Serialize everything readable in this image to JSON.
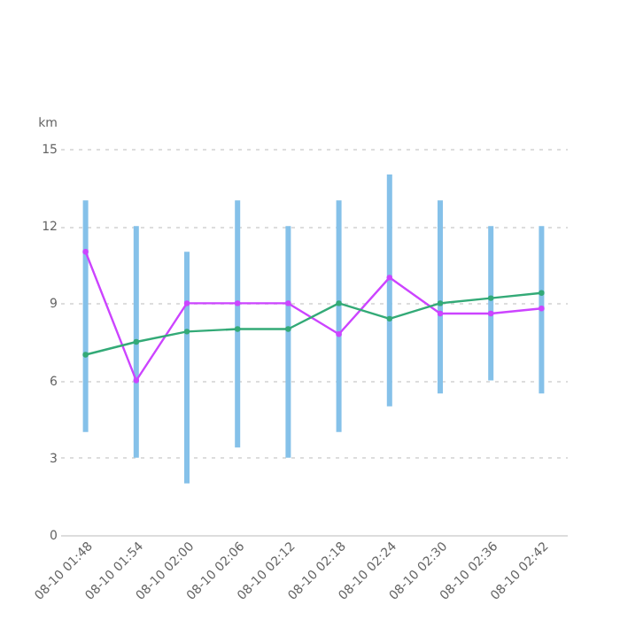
{
  "chart_data": {
    "type": "bar",
    "ylabel": "km",
    "categories": [
      "08-10 01:48",
      "08-10 01:54",
      "08-10 02:00",
      "08-10 02:06",
      "08-10 02:12",
      "08-10 02:18",
      "08-10 02:24",
      "08-10 02:30",
      "08-10 02:36",
      "08-10 02:42"
    ],
    "series": [
      {
        "color": "#85c1e9",
        "base": [
          4,
          3,
          2,
          3.4,
          3,
          4,
          5,
          5.5,
          6,
          5.5
        ],
        "values": [
          9,
          9,
          9,
          9.6,
          9,
          9,
          9,
          7.5,
          6,
          6.5
        ]
      },
      {
        "type": "line",
        "color": "#cc44ff",
        "values": [
          11,
          6,
          9,
          9,
          9,
          7.8,
          10,
          8.6,
          8.6,
          8.8
        ]
      },
      {
        "type": "line",
        "color": "#33aa77",
        "values": [
          7,
          7.5,
          7.9,
          8,
          8,
          9,
          8.4,
          9,
          9.2,
          9.4
        ]
      }
    ],
    "ylim": [
      0,
      15
    ],
    "yticks": [
      0,
      3,
      6,
      9,
      12,
      15
    ],
    "grid": "y",
    "marker": "circle",
    "line_style": "solid"
  }
}
